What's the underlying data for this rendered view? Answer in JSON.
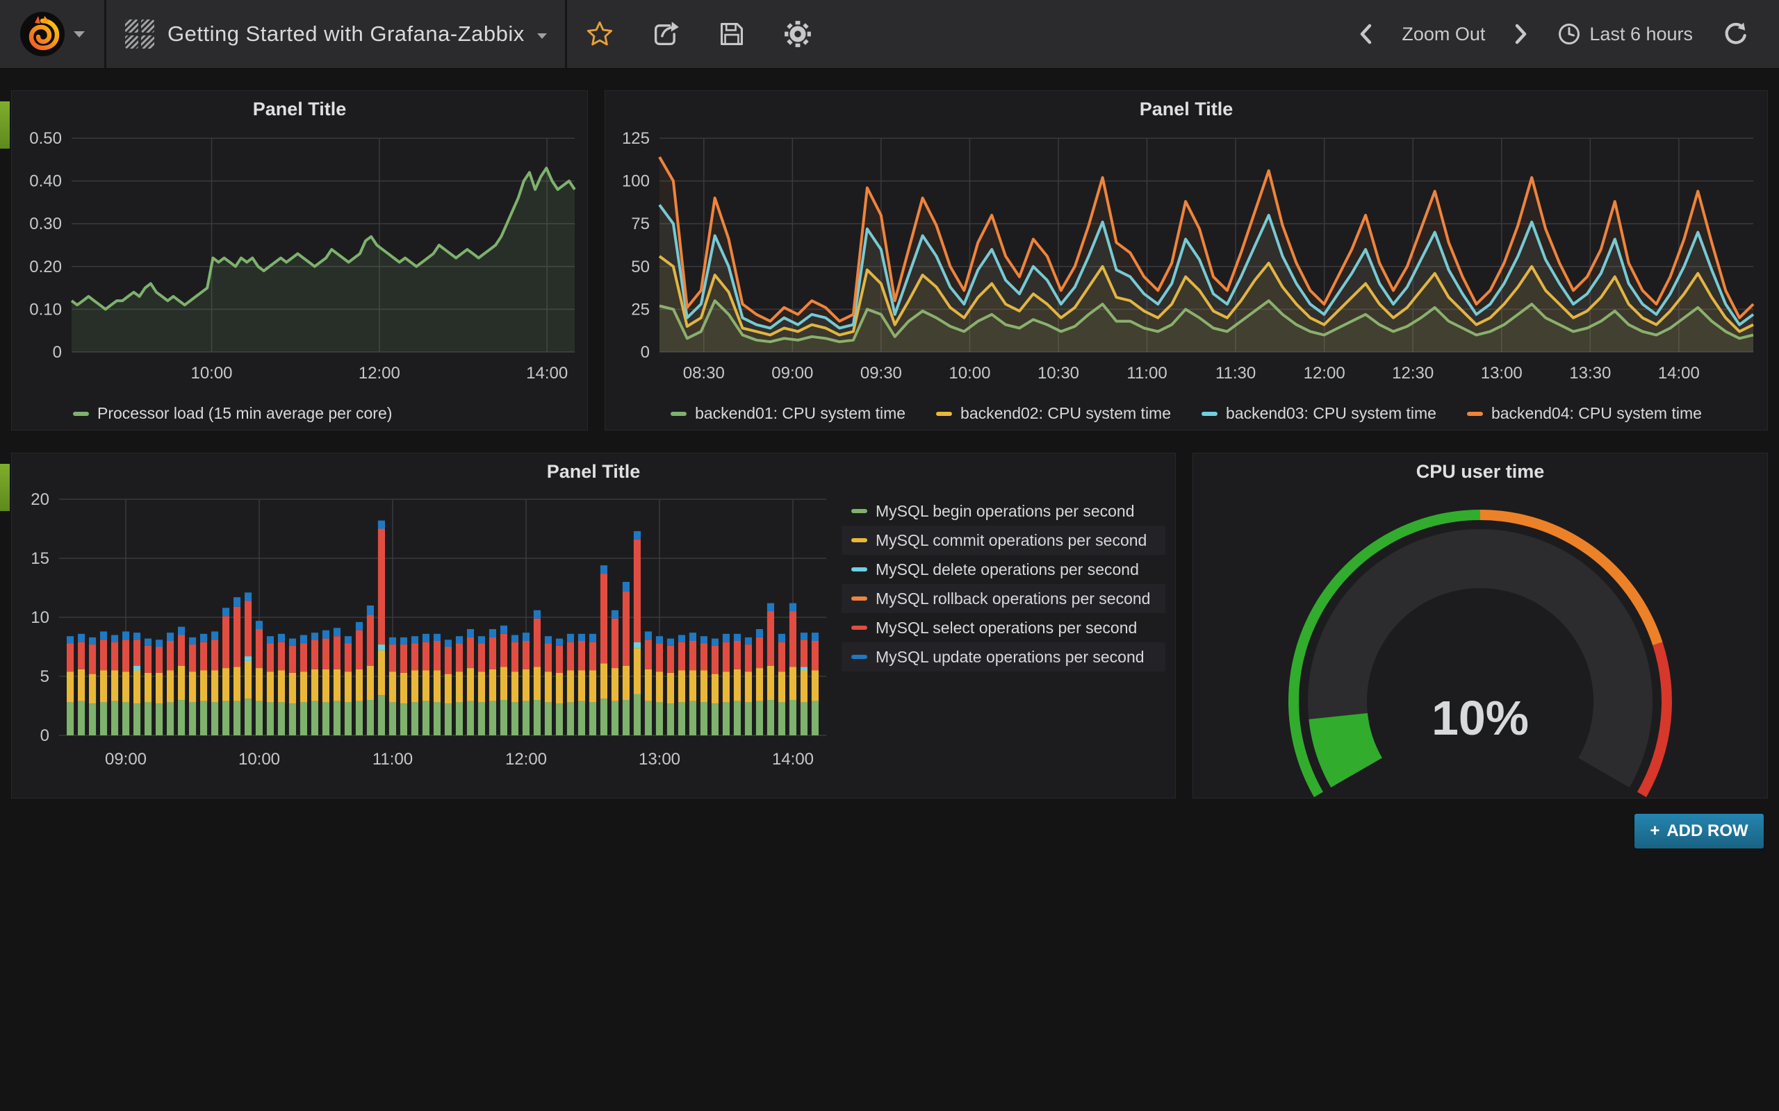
{
  "navbar": {
    "dashboard_title": "Getting Started with Grafana-Zabbix",
    "zoom_out_label": "Zoom Out",
    "time_range_label": "Last 6 hours",
    "actions": [
      "star-icon",
      "share-icon",
      "save-icon",
      "settings-icon"
    ]
  },
  "add_row": {
    "icon": "+",
    "label": "ADD ROW"
  },
  "colors": {
    "green": "#7eb26d",
    "yellow": "#eab839",
    "cyan": "#6ed0e0",
    "orange": "#ef843c",
    "red": "#e24d42",
    "blue": "#1f78c1",
    "gauge_green": "#32ac2d",
    "gauge_orange": "#ed8128",
    "gauge_red": "#d8372b",
    "star_accent": "#e7a23b",
    "add_row_blue": "#1f78a8",
    "panel_bg": "#1c1c1e",
    "page_bg": "#141415",
    "grid_line": "#3a3a3c"
  },
  "chart_data": [
    {
      "type": "line",
      "title": "Panel Title",
      "x_start": 8.33,
      "x_end": 14.33,
      "ylim": [
        0,
        0.5
      ],
      "yticks": [
        0,
        0.1,
        0.2,
        0.3,
        0.4,
        0.5
      ],
      "ytick_labels": [
        "0",
        "0.10",
        "0.20",
        "0.30",
        "0.40",
        "0.50"
      ],
      "xticks": [
        10,
        12,
        14
      ],
      "xtick_labels": [
        "10:00",
        "12:00",
        "14:00"
      ],
      "grid": true,
      "legend_position": "bottom-left",
      "fill_opacity": 0.13,
      "stroke_width": 4,
      "series": [
        {
          "name": "Processor load (15 min average per core)",
          "color": "#7eb26d",
          "values": [
            0.12,
            0.11,
            0.12,
            0.13,
            0.12,
            0.11,
            0.1,
            0.11,
            0.12,
            0.12,
            0.13,
            0.14,
            0.13,
            0.15,
            0.16,
            0.14,
            0.13,
            0.12,
            0.13,
            0.12,
            0.11,
            0.12,
            0.13,
            0.14,
            0.15,
            0.22,
            0.21,
            0.22,
            0.21,
            0.2,
            0.22,
            0.21,
            0.22,
            0.2,
            0.19,
            0.2,
            0.21,
            0.22,
            0.21,
            0.22,
            0.23,
            0.22,
            0.21,
            0.2,
            0.21,
            0.22,
            0.24,
            0.23,
            0.22,
            0.21,
            0.22,
            0.23,
            0.26,
            0.27,
            0.25,
            0.24,
            0.23,
            0.22,
            0.21,
            0.22,
            0.21,
            0.2,
            0.21,
            0.22,
            0.23,
            0.25,
            0.24,
            0.23,
            0.22,
            0.23,
            0.24,
            0.23,
            0.22,
            0.23,
            0.24,
            0.25,
            0.27,
            0.3,
            0.33,
            0.36,
            0.4,
            0.42,
            0.38,
            0.41,
            0.43,
            0.4,
            0.38,
            0.39,
            0.4,
            0.38
          ]
        }
      ]
    },
    {
      "type": "line",
      "title": "Panel Title",
      "x_start": 8.25,
      "x_end": 14.42,
      "ylim": [
        0,
        125
      ],
      "yticks": [
        0,
        25,
        50,
        75,
        100,
        125
      ],
      "ytick_labels": [
        "0",
        "25",
        "50",
        "75",
        "100",
        "125"
      ],
      "xticks": [
        8.5,
        9,
        9.5,
        10,
        10.5,
        11,
        11.5,
        12,
        12.5,
        13,
        13.5,
        14
      ],
      "xtick_labels": [
        "08:30",
        "09:00",
        "09:30",
        "10:00",
        "10:30",
        "11:00",
        "11:30",
        "12:00",
        "12:30",
        "13:00",
        "13:30",
        "14:00"
      ],
      "grid": true,
      "legend_position": "bottom-center",
      "fill_opacity": 0.07,
      "stroke_width": 4,
      "series": [
        {
          "name": "backend01: CPU system time",
          "color": "#7eb26d",
          "values": [
            27,
            25,
            8,
            12,
            30,
            22,
            10,
            7,
            6,
            8,
            7,
            9,
            8,
            6,
            7,
            25,
            22,
            9,
            18,
            24,
            20,
            15,
            12,
            18,
            22,
            16,
            14,
            19,
            16,
            12,
            15,
            22,
            28,
            18,
            18,
            14,
            12,
            16,
            25,
            20,
            14,
            12,
            18,
            24,
            30,
            22,
            16,
            12,
            10,
            14,
            18,
            22,
            16,
            12,
            15,
            20,
            26,
            18,
            14,
            10,
            12,
            16,
            22,
            28,
            20,
            16,
            12,
            14,
            18,
            24,
            16,
            12,
            10,
            14,
            20,
            26,
            18,
            12,
            8,
            10
          ]
        },
        {
          "name": "backend02: CPU system time",
          "color": "#eab839",
          "values": [
            56,
            50,
            15,
            20,
            45,
            35,
            14,
            12,
            10,
            14,
            12,
            16,
            14,
            10,
            12,
            48,
            40,
            16,
            30,
            45,
            38,
            26,
            20,
            32,
            40,
            28,
            24,
            34,
            28,
            20,
            26,
            38,
            50,
            32,
            30,
            24,
            20,
            28,
            44,
            36,
            24,
            20,
            30,
            42,
            52,
            38,
            28,
            20,
            16,
            24,
            32,
            40,
            28,
            20,
            26,
            36,
            46,
            32,
            24,
            16,
            20,
            28,
            38,
            50,
            36,
            28,
            20,
            24,
            32,
            44,
            28,
            20,
            16,
            24,
            34,
            46,
            32,
            20,
            12,
            16
          ]
        },
        {
          "name": "backend03: CPU system time",
          "color": "#6ed0e0",
          "values": [
            86,
            75,
            20,
            28,
            68,
            50,
            20,
            16,
            14,
            20,
            16,
            22,
            20,
            14,
            16,
            72,
            60,
            22,
            45,
            68,
            56,
            38,
            28,
            48,
            60,
            42,
            34,
            50,
            42,
            28,
            38,
            56,
            76,
            48,
            44,
            34,
            28,
            40,
            66,
            54,
            34,
            28,
            44,
            62,
            80,
            56,
            40,
            28,
            22,
            34,
            46,
            60,
            40,
            28,
            38,
            54,
            70,
            48,
            34,
            22,
            28,
            40,
            56,
            76,
            54,
            40,
            28,
            34,
            46,
            66,
            40,
            28,
            22,
            34,
            50,
            70,
            48,
            28,
            16,
            22
          ]
        },
        {
          "name": "backend04: CPU system time",
          "color": "#ef843c",
          "values": [
            114,
            100,
            26,
            36,
            90,
            66,
            28,
            22,
            18,
            26,
            22,
            30,
            26,
            18,
            22,
            96,
            80,
            30,
            60,
            90,
            74,
            50,
            36,
            64,
            80,
            56,
            44,
            66,
            56,
            36,
            50,
            74,
            102,
            64,
            58,
            44,
            36,
            52,
            88,
            72,
            44,
            36,
            58,
            82,
            106,
            74,
            52,
            36,
            28,
            44,
            60,
            80,
            52,
            36,
            50,
            72,
            94,
            64,
            44,
            28,
            36,
            52,
            74,
            102,
            72,
            52,
            36,
            44,
            60,
            88,
            52,
            36,
            28,
            44,
            66,
            94,
            64,
            36,
            20,
            28
          ]
        }
      ]
    },
    {
      "type": "bar_stacked",
      "title": "Panel Title",
      "x_start": 8.5,
      "x_end": 14.25,
      "bar_start": 8.5833,
      "bar_step": 0.08333,
      "ylim": [
        0,
        20
      ],
      "yticks": [
        0,
        5,
        10,
        15,
        20
      ],
      "ytick_labels": [
        "0",
        "5",
        "10",
        "15",
        "20"
      ],
      "xticks": [
        9,
        10,
        11,
        12,
        13,
        14
      ],
      "xtick_labels": [
        "09:00",
        "10:00",
        "11:00",
        "12:00",
        "13:00",
        "14:00"
      ],
      "grid": true,
      "legend_position": "right",
      "series": [
        {
          "name": "MySQL begin operations per second",
          "color": "#7eb26d",
          "values": [
            2.8,
            2.9,
            2.7,
            2.8,
            2.9,
            2.8,
            2.7,
            2.8,
            2.7,
            2.8,
            3.0,
            2.8,
            2.9,
            2.8,
            2.9,
            2.9,
            3.1,
            2.9,
            2.8,
            2.8,
            2.7,
            2.8,
            2.9,
            2.8,
            2.9,
            2.8,
            2.9,
            3.0,
            3.4,
            2.8,
            2.7,
            2.8,
            2.9,
            2.8,
            2.7,
            2.8,
            2.9,
            2.8,
            2.9,
            3.0,
            2.8,
            2.9,
            3.0,
            2.8,
            2.7,
            2.8,
            2.9,
            2.8,
            3.1,
            2.9,
            3.0,
            3.5,
            2.9,
            2.8,
            2.7,
            2.8,
            2.9,
            2.8,
            2.7,
            2.8,
            2.9,
            2.8,
            2.9,
            3.0,
            2.8,
            3.0,
            2.8,
            2.9
          ]
        },
        {
          "name": "MySQL commit operations per second",
          "color": "#eab839",
          "values": [
            2.6,
            2.7,
            2.5,
            2.7,
            2.6,
            2.6,
            2.8,
            2.5,
            2.6,
            2.7,
            2.9,
            2.6,
            2.6,
            2.7,
            2.8,
            2.9,
            3.2,
            2.8,
            2.6,
            2.7,
            2.6,
            2.6,
            2.7,
            2.8,
            2.7,
            2.6,
            2.7,
            2.9,
            3.8,
            2.6,
            2.6,
            2.7,
            2.6,
            2.7,
            2.5,
            2.6,
            2.8,
            2.6,
            2.7,
            2.8,
            2.6,
            2.7,
            2.8,
            2.6,
            2.6,
            2.7,
            2.6,
            2.7,
            3.0,
            2.8,
            2.9,
            3.9,
            2.7,
            2.6,
            2.6,
            2.7,
            2.6,
            2.7,
            2.5,
            2.6,
            2.7,
            2.6,
            2.8,
            2.9,
            2.6,
            2.8,
            2.7,
            2.6
          ]
        },
        {
          "name": "MySQL delete operations per second",
          "color": "#6ed0e0",
          "values": [
            0,
            0,
            0,
            0,
            0,
            0,
            0.4,
            0,
            0,
            0,
            0,
            0,
            0,
            0,
            0,
            0,
            0.4,
            0,
            0,
            0,
            0,
            0,
            0,
            0,
            0,
            0,
            0,
            0,
            0.5,
            0,
            0,
            0,
            0,
            0,
            0,
            0,
            0,
            0,
            0,
            0,
            0,
            0,
            0,
            0,
            0,
            0,
            0,
            0,
            0,
            0,
            0,
            0.5,
            0,
            0,
            0,
            0,
            0,
            0,
            0,
            0,
            0,
            0,
            0,
            0,
            0,
            0,
            0.3,
            0
          ]
        },
        {
          "name": "MySQL rollback operations per second",
          "color": "#ef843c",
          "values": [
            0,
            0,
            0,
            0,
            0,
            0,
            0,
            0,
            0,
            0,
            0,
            0,
            0,
            0,
            0,
            0,
            0,
            0,
            0,
            0,
            0,
            0,
            0,
            0,
            0,
            0,
            0,
            0,
            0,
            0,
            0,
            0,
            0,
            0,
            0,
            0,
            0,
            0,
            0,
            0,
            0,
            0,
            0,
            0,
            0,
            0,
            0,
            0,
            0,
            0,
            0,
            0,
            0,
            0,
            0,
            0,
            0,
            0,
            0,
            0,
            0,
            0,
            0,
            0,
            0,
            0,
            0,
            0
          ]
        },
        {
          "name": "MySQL select operations per second",
          "color": "#e24d42",
          "values": [
            2.4,
            2.3,
            2.5,
            2.6,
            2.4,
            2.7,
            2.2,
            2.3,
            2.2,
            2.5,
            2.6,
            2.3,
            2.4,
            2.6,
            4.4,
            5.1,
            4.7,
            3.3,
            2.4,
            2.4,
            2.3,
            2.4,
            2.5,
            2.6,
            2.8,
            2.4,
            3.3,
            4.3,
            9.8,
            2.3,
            2.4,
            2.3,
            2.4,
            2.5,
            2.3,
            2.4,
            2.6,
            2.4,
            2.7,
            2.8,
            2.5,
            2.4,
            4.1,
            2.4,
            2.3,
            2.4,
            2.5,
            2.4,
            7.6,
            4.2,
            6.3,
            8.7,
            2.5,
            2.4,
            2.3,
            2.4,
            2.5,
            2.3,
            2.4,
            2.5,
            2.4,
            2.3,
            2.6,
            4.6,
            2.5,
            4.7,
            2.3,
            2.5
          ]
        },
        {
          "name": "MySQL update operations per second",
          "color": "#1f78c1",
          "values": [
            0.6,
            0.7,
            0.6,
            0.7,
            0.6,
            0.7,
            0.6,
            0.6,
            0.6,
            0.7,
            0.7,
            0.6,
            0.7,
            0.7,
            0.7,
            0.8,
            0.7,
            0.7,
            0.6,
            0.7,
            0.6,
            0.7,
            0.6,
            0.7,
            0.7,
            0.6,
            0.7,
            0.8,
            0.7,
            0.6,
            0.6,
            0.6,
            0.7,
            0.6,
            0.6,
            0.6,
            0.7,
            0.6,
            0.7,
            0.7,
            0.6,
            0.7,
            0.7,
            0.6,
            0.6,
            0.7,
            0.6,
            0.7,
            0.7,
            0.7,
            0.8,
            0.7,
            0.7,
            0.6,
            0.6,
            0.6,
            0.7,
            0.6,
            0.6,
            0.7,
            0.6,
            0.6,
            0.7,
            0.7,
            0.7,
            0.7,
            0.6,
            0.7
          ]
        }
      ]
    },
    {
      "type": "gauge",
      "title": "CPU user time",
      "value": 10,
      "unit": "%",
      "display_value": "10%",
      "min": 0,
      "max": 100,
      "thresholds": [
        {
          "to": 50,
          "color": "#32ac2d"
        },
        {
          "to": 80,
          "color": "#ed8128"
        },
        {
          "to": 100,
          "color": "#d8372b"
        }
      ],
      "value_color": "#d8d9da"
    }
  ]
}
